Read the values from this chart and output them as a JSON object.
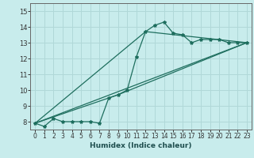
{
  "xlabel": "Humidex (Indice chaleur)",
  "bg_color": "#c8ecec",
  "grid_color": "#b0d8d8",
  "line_color": "#1e6e5e",
  "xlim": [
    -0.5,
    23.5
  ],
  "ylim": [
    7.5,
    15.5
  ],
  "xticks": [
    0,
    1,
    2,
    3,
    4,
    5,
    6,
    7,
    8,
    9,
    10,
    11,
    12,
    13,
    14,
    15,
    16,
    17,
    18,
    19,
    20,
    21,
    22,
    23
  ],
  "yticks": [
    8,
    9,
    10,
    11,
    12,
    13,
    14,
    15
  ],
  "series1_x": [
    0,
    1,
    2,
    3,
    4,
    5,
    6,
    7,
    8,
    9,
    10,
    11,
    12,
    13,
    14,
    15,
    16,
    17,
    18,
    19,
    20,
    21,
    22,
    23
  ],
  "series1_y": [
    7.9,
    7.7,
    8.2,
    8.0,
    8.0,
    8.0,
    8.0,
    7.9,
    9.5,
    9.7,
    10.0,
    12.1,
    13.7,
    14.1,
    14.3,
    13.6,
    13.5,
    13.0,
    13.2,
    13.2,
    13.2,
    13.0,
    13.0,
    13.0
  ],
  "series2_x": [
    0,
    23
  ],
  "series2_y": [
    7.9,
    13.0
  ],
  "series3_x": [
    0,
    9,
    23
  ],
  "series3_y": [
    7.9,
    9.7,
    13.0
  ],
  "series4_x": [
    0,
    12,
    23
  ],
  "series4_y": [
    7.9,
    13.7,
    13.0
  ]
}
